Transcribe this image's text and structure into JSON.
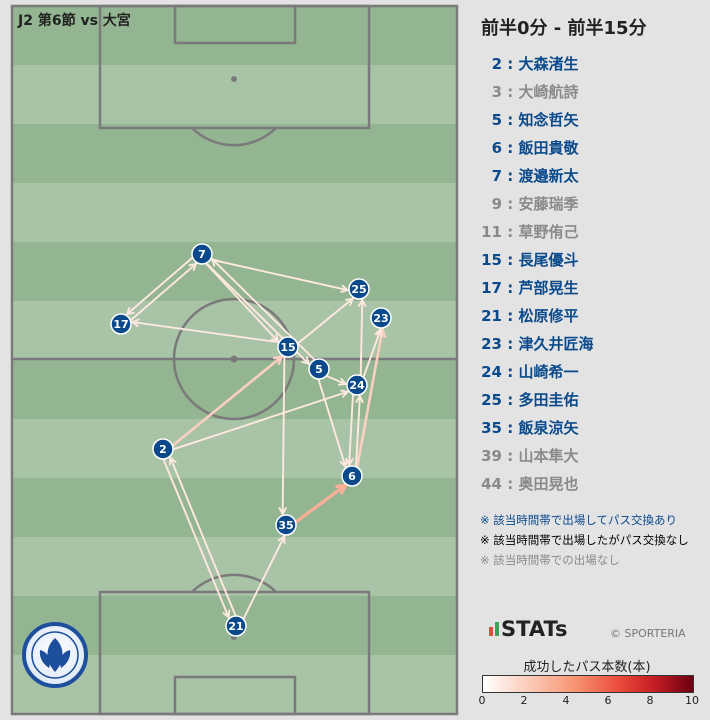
{
  "header": {
    "match": "J2 第6節 vs 大宮",
    "time_range": "前半0分 - 前半15分"
  },
  "colors": {
    "played_passed": "#0a4a8c",
    "played_no_pass": "#000000",
    "not_played": "#8a8a8a",
    "node": "#0a4a8c"
  },
  "roster": [
    {
      "no": "2",
      "name": "大森渚生",
      "status": "played_passed"
    },
    {
      "no": "3",
      "name": "大崎航詩",
      "status": "not_played"
    },
    {
      "no": "5",
      "name": "知念哲矢",
      "status": "played_passed"
    },
    {
      "no": "6",
      "name": "飯田貴敬",
      "status": "played_passed"
    },
    {
      "no": "7",
      "name": "渡邉新太",
      "status": "played_passed"
    },
    {
      "no": "9",
      "name": "安藤瑞季",
      "status": "not_played"
    },
    {
      "no": "11",
      "name": "草野侑己",
      "status": "not_played"
    },
    {
      "no": "15",
      "name": "長尾優斗",
      "status": "played_passed"
    },
    {
      "no": "17",
      "name": "芦部晃生",
      "status": "played_passed"
    },
    {
      "no": "21",
      "name": "松原修平",
      "status": "played_passed"
    },
    {
      "no": "23",
      "name": "津久井匠海",
      "status": "played_passed"
    },
    {
      "no": "24",
      "name": "山崎希一",
      "status": "played_passed"
    },
    {
      "no": "25",
      "name": "多田圭佑",
      "status": "played_passed"
    },
    {
      "no": "35",
      "name": "飯泉涼矢",
      "status": "played_passed"
    },
    {
      "no": "39",
      "name": "山本隼大",
      "status": "not_played"
    },
    {
      "no": "44",
      "name": "奥田晃也",
      "status": "not_played"
    }
  ],
  "legend": [
    {
      "text": "※ 該当時間帯で出場してパス交換あり",
      "status": "played_passed"
    },
    {
      "text": "※ 該当時間帯で出場したがパス交換なし",
      "status": "played_no_pass"
    },
    {
      "text": "※ 該当時間帯での出場なし",
      "status": "not_played"
    }
  ],
  "branding": {
    "stats_logo": "STATs",
    "copyright": "© SPORTERIA",
    "club_logo_icon": "mito-hollyhock-crest-icon"
  },
  "scale": {
    "title": "成功したパス本数(本)",
    "min": 0,
    "max": 10,
    "ticks": [
      "0",
      "2",
      "4",
      "6",
      "8",
      "10"
    ]
  },
  "chart_data": {
    "type": "pass-network",
    "nodes": [
      {
        "id": "2"
      },
      {
        "id": "5"
      },
      {
        "id": "6"
      },
      {
        "id": "7"
      },
      {
        "id": "15"
      },
      {
        "id": "17"
      },
      {
        "id": "21"
      },
      {
        "id": "23"
      },
      {
        "id": "24"
      },
      {
        "id": "25"
      },
      {
        "id": "35"
      }
    ],
    "edges": [
      {
        "from": "2",
        "to": "15",
        "passes": 2
      },
      {
        "from": "2",
        "to": "21",
        "passes": 1
      },
      {
        "from": "21",
        "to": "2",
        "passes": 1
      },
      {
        "from": "21",
        "to": "35",
        "passes": 1
      },
      {
        "from": "35",
        "to": "6",
        "passes": 3
      },
      {
        "from": "6",
        "to": "24",
        "passes": 1
      },
      {
        "from": "24",
        "to": "6",
        "passes": 1
      },
      {
        "from": "6",
        "to": "23",
        "passes": 2
      },
      {
        "from": "15",
        "to": "35",
        "passes": 1
      },
      {
        "from": "15",
        "to": "17",
        "passes": 1
      },
      {
        "from": "17",
        "to": "7",
        "passes": 1
      },
      {
        "from": "7",
        "to": "17",
        "passes": 1
      },
      {
        "from": "7",
        "to": "25",
        "passes": 1
      },
      {
        "from": "7",
        "to": "15",
        "passes": 1
      },
      {
        "from": "7",
        "to": "5",
        "passes": 1
      },
      {
        "from": "5",
        "to": "7",
        "passes": 1
      },
      {
        "from": "15",
        "to": "25",
        "passes": 1
      },
      {
        "from": "5",
        "to": "24",
        "passes": 1
      },
      {
        "from": "5",
        "to": "6",
        "passes": 1
      },
      {
        "from": "24",
        "to": "23",
        "passes": 1
      },
      {
        "from": "24",
        "to": "25",
        "passes": 1
      },
      {
        "from": "2",
        "to": "24",
        "passes": 1
      }
    ]
  }
}
